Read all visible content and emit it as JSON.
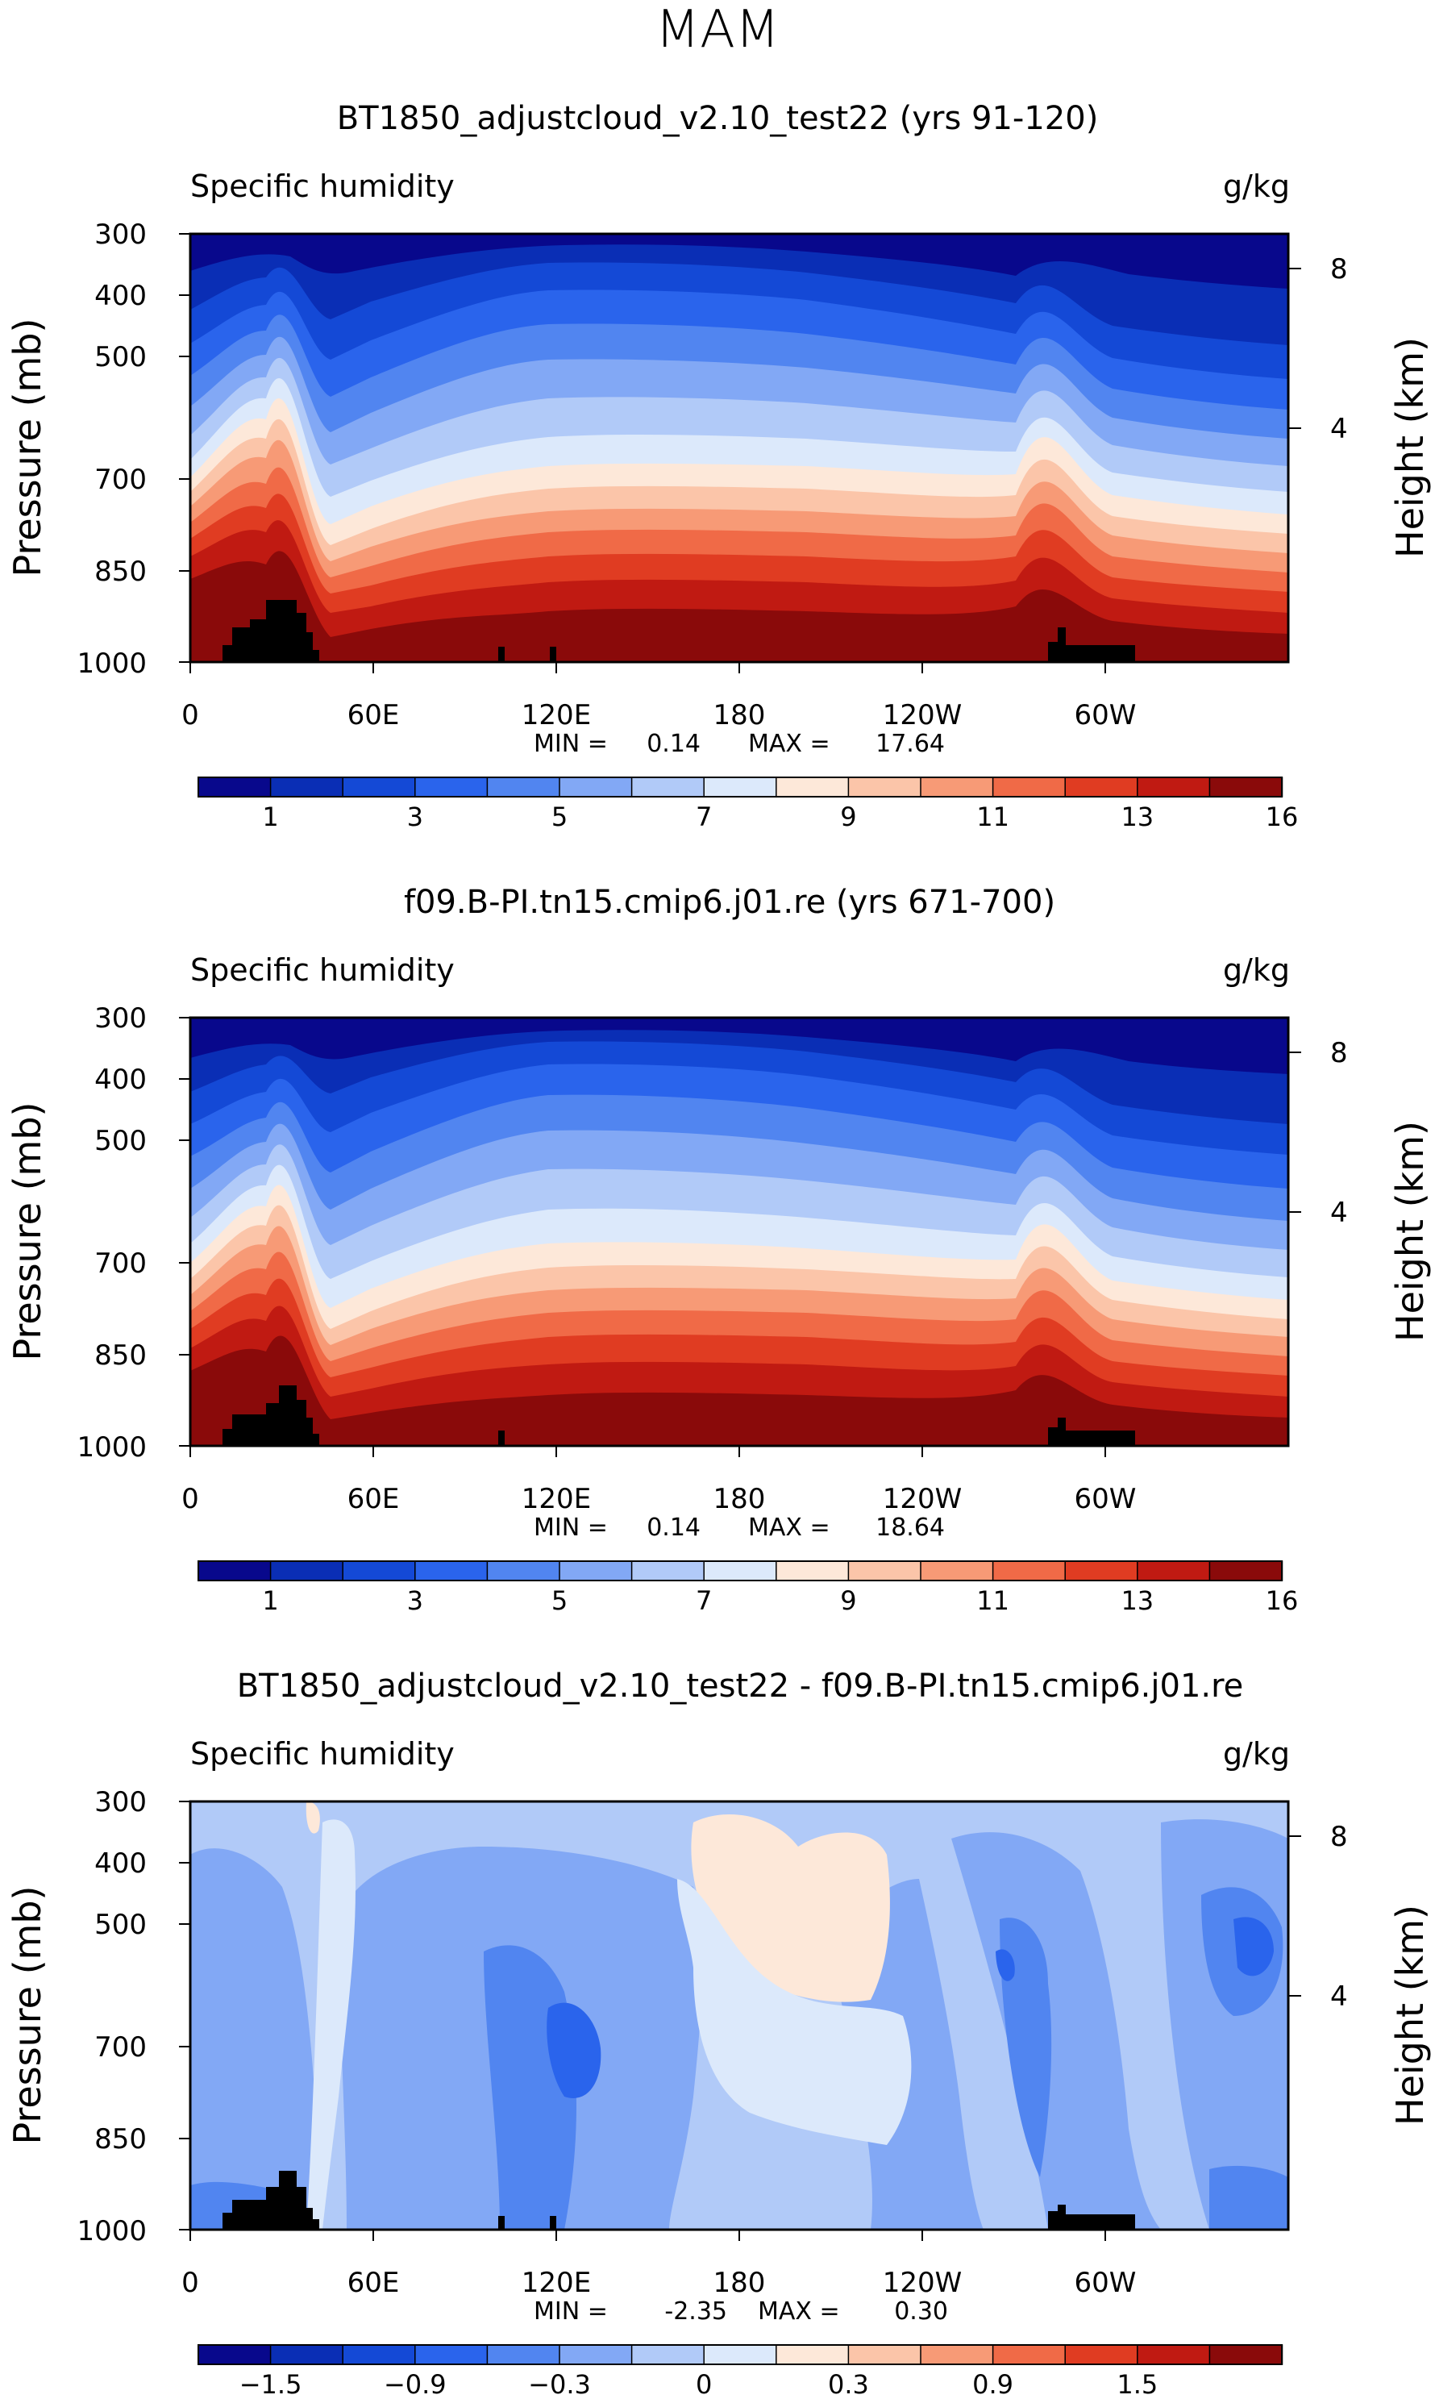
{
  "page_title": "MAM",
  "chart_data": [
    {
      "type": "contour",
      "title": "BT1850_adjustcloud_v2.10_test22 (yrs 91-120)",
      "variable": "Specific humidity",
      "units": "g/kg",
      "ylabel": "Pressure (mb)",
      "ylabel_right": "Height (km)",
      "y_ticks": [
        "300",
        "400",
        "500",
        "700",
        "850",
        "1000"
      ],
      "y_right_ticks": [
        "8",
        "4"
      ],
      "x_ticks": [
        "0",
        "60E",
        "120E",
        "180",
        "120W",
        "60W"
      ],
      "stats": {
        "min_label": "MIN =",
        "min": "0.14",
        "max_label": "MAX =",
        "max": "17.64"
      },
      "colorbar_labels": [
        "1",
        "3",
        "5",
        "7",
        "9",
        "11",
        "13",
        "16"
      ],
      "colorbar_levels": [
        1,
        2,
        3,
        4,
        5,
        6,
        7,
        8,
        9,
        10,
        11,
        12,
        13,
        14,
        16
      ]
    },
    {
      "type": "contour",
      "title": "f09.B-PI.tn15.cmip6.j01.re (yrs 671-700)",
      "variable": "Specific humidity",
      "units": "g/kg",
      "ylabel": "Pressure (mb)",
      "ylabel_right": "Height (km)",
      "y_ticks": [
        "300",
        "400",
        "500",
        "700",
        "850",
        "1000"
      ],
      "y_right_ticks": [
        "8",
        "4"
      ],
      "x_ticks": [
        "0",
        "60E",
        "120E",
        "180",
        "120W",
        "60W"
      ],
      "stats": {
        "min_label": "MIN =",
        "min": "0.14",
        "max_label": "MAX =",
        "max": "18.64"
      },
      "colorbar_labels": [
        "1",
        "3",
        "5",
        "7",
        "9",
        "11",
        "13",
        "16"
      ],
      "colorbar_levels": [
        1,
        2,
        3,
        4,
        5,
        6,
        7,
        8,
        9,
        10,
        11,
        12,
        13,
        14,
        16
      ]
    },
    {
      "type": "contour",
      "title": "BT1850_adjustcloud_v2.10_test22 - f09.B-PI.tn15.cmip6.j01.re",
      "variable": "Specific humidity",
      "units": "g/kg",
      "ylabel": "Pressure (mb)",
      "ylabel_right": "Height (km)",
      "y_ticks": [
        "300",
        "400",
        "500",
        "700",
        "850",
        "1000"
      ],
      "y_right_ticks": [
        "8",
        "4"
      ],
      "x_ticks": [
        "0",
        "60E",
        "120E",
        "180",
        "120W",
        "60W"
      ],
      "stats": {
        "min_label": "MIN =",
        "min": "-2.35",
        "max_label": "MAX =",
        "max": "0.30"
      },
      "colorbar_labels": [
        "−1.5",
        "−0.9",
        "−0.3",
        "0",
        "0.3",
        "0.9",
        "1.5"
      ],
      "colorbar_levels": [
        -1.8,
        -1.5,
        -1.2,
        -0.9,
        -0.6,
        -0.3,
        -0.1,
        0,
        0.1,
        0.3,
        0.6,
        0.9,
        1.2,
        1.5,
        1.8
      ]
    }
  ],
  "palette": [
    "#08088c",
    "#0a2eb5",
    "#1449d6",
    "#2a64ec",
    "#5185f0",
    "#82a8f5",
    "#b1caf8",
    "#dce9fb",
    "#fde8d9",
    "#fbc5a9",
    "#f79a76",
    "#f06a47",
    "#e03c22",
    "#c01a12",
    "#8a0a0a"
  ]
}
